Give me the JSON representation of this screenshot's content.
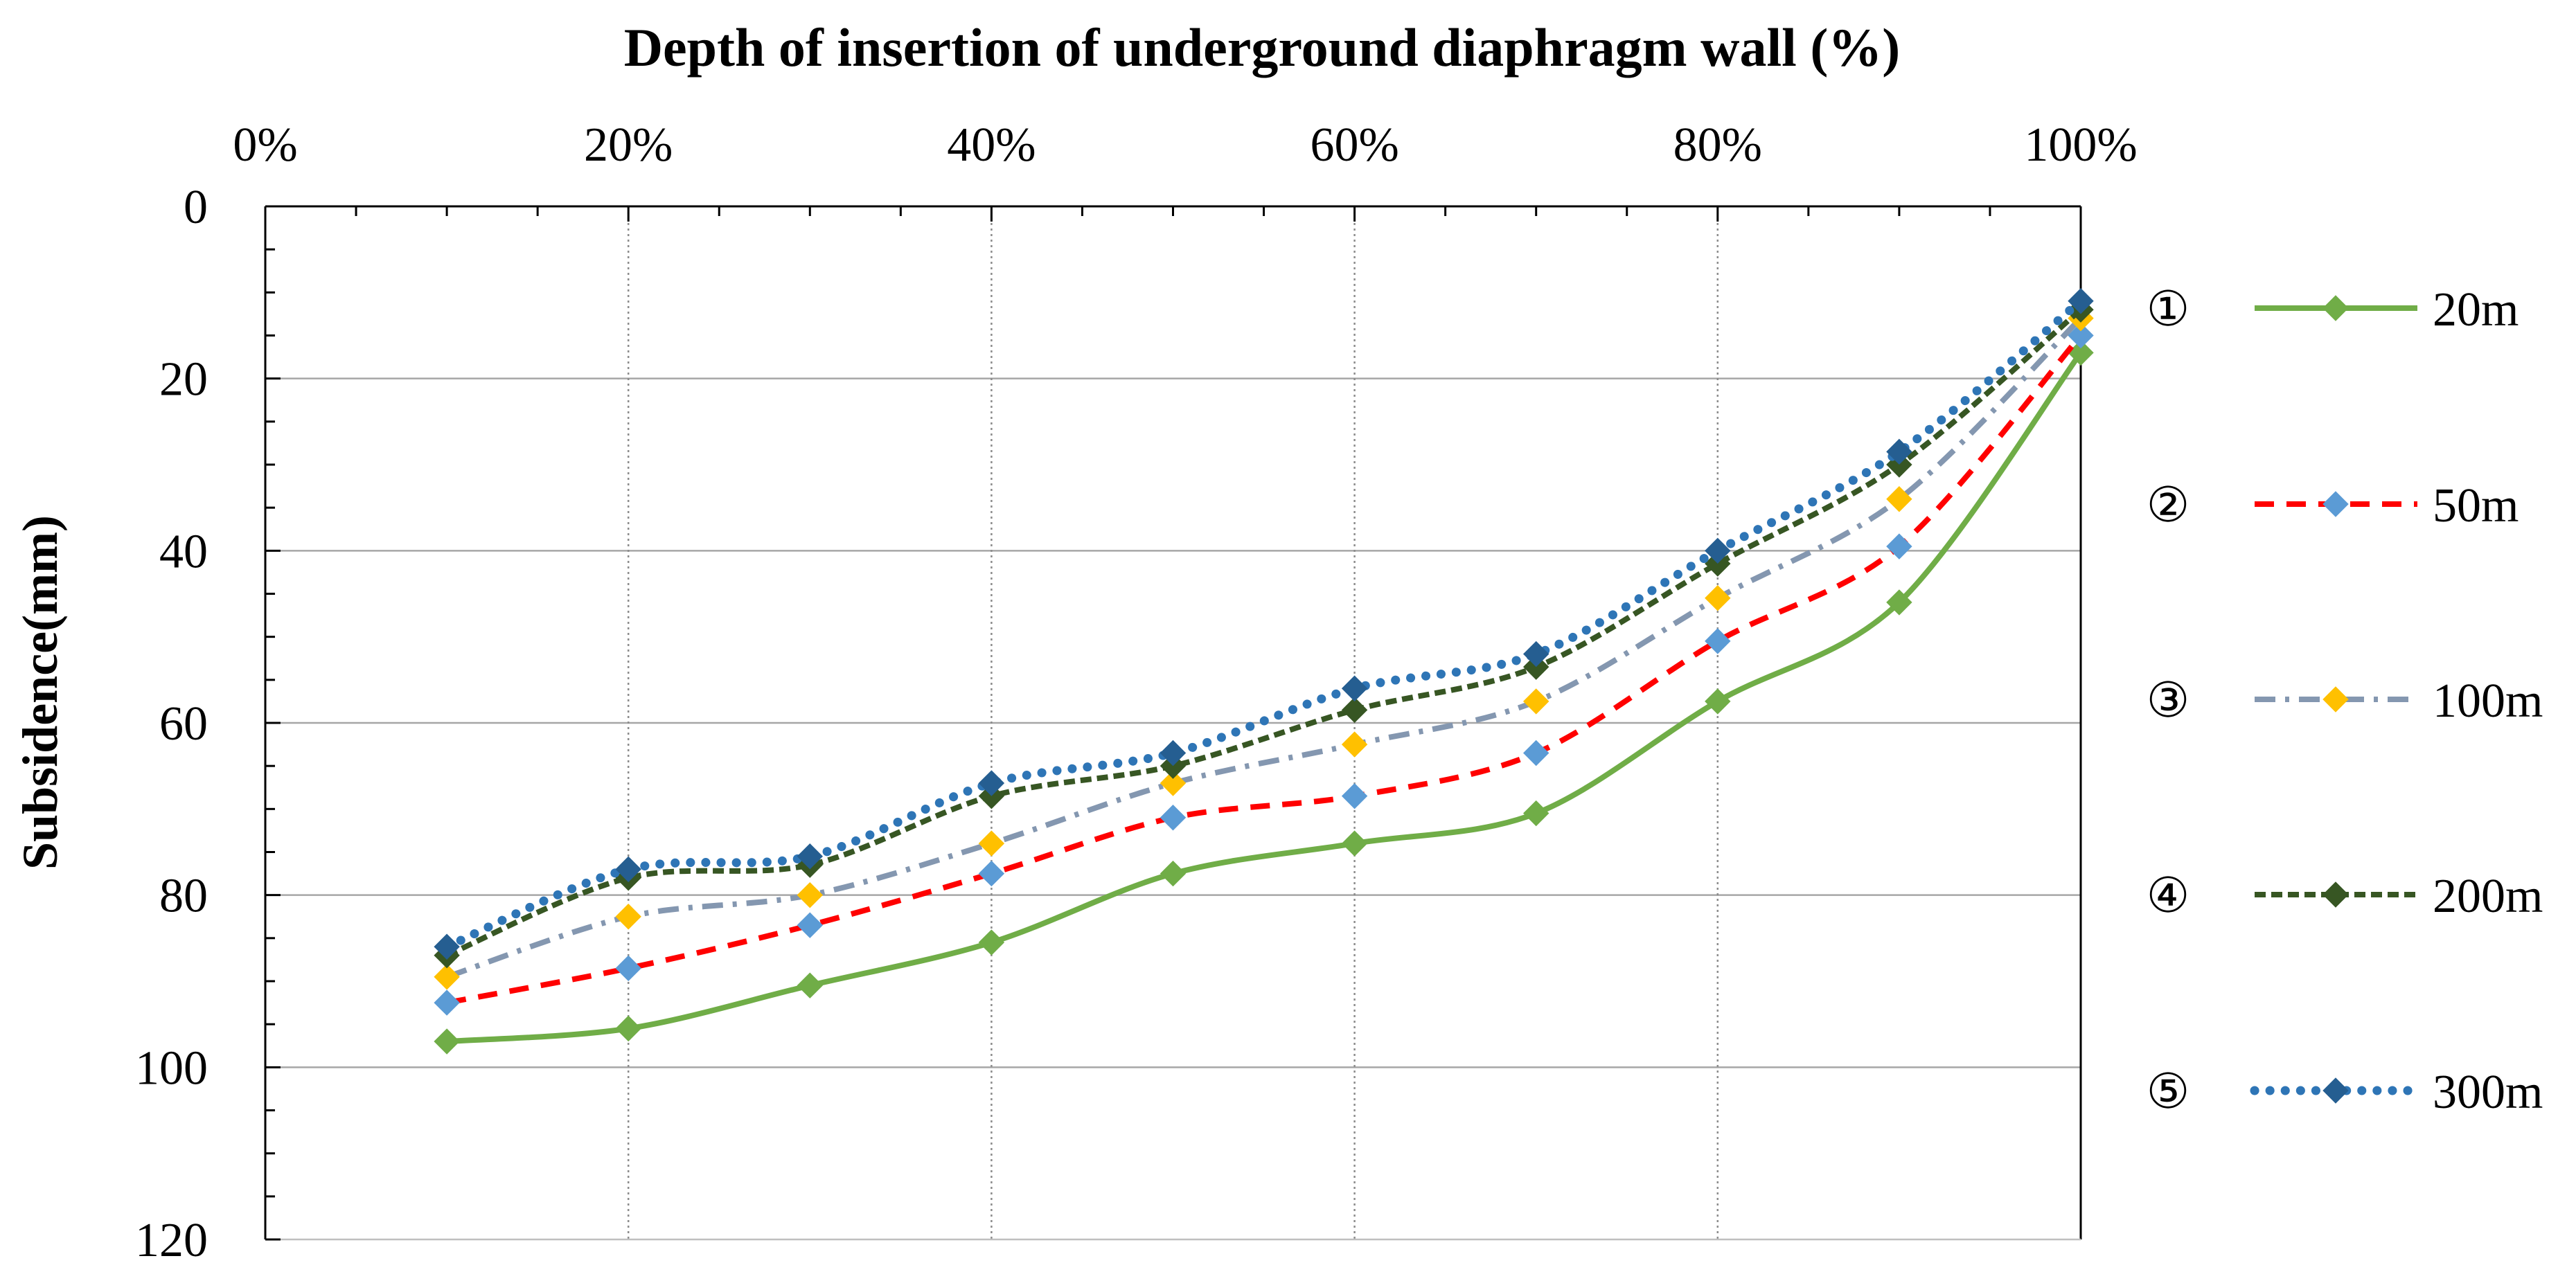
{
  "chart_data": {
    "type": "line",
    "title": "Depth of insertion of underground diaphragm wall (%)",
    "xlabel": "Depth of insertion of underground diaphragm wall (%)",
    "ylabel": "Subsidence(mm)",
    "x_axis_position": "top",
    "y_axis_inverted": true,
    "xlim": [
      0,
      100
    ],
    "ylim": [
      0,
      120
    ],
    "x_ticks": [
      "0%",
      "20%",
      "40%",
      "60%",
      "80%",
      "100%"
    ],
    "y_ticks": [
      "0",
      "20",
      "40",
      "60",
      "80",
      "100",
      "120"
    ],
    "x": [
      10,
      20,
      30,
      40,
      50,
      60,
      70,
      80,
      90,
      100
    ],
    "grid": true,
    "legend_position": "right",
    "series": [
      {
        "marker": "①",
        "name": "20m",
        "color": "#70ad47",
        "marker_color": "#70ad47",
        "dash": "solid",
        "values": [
          97,
          95.5,
          90.5,
          85.5,
          77.5,
          74,
          70.5,
          57.5,
          46,
          17
        ]
      },
      {
        "marker": "②",
        "name": "50m",
        "color": "#ff0000",
        "marker_color": "#5b9bd5",
        "dash": "dash",
        "values": [
          92.5,
          88.5,
          83.5,
          77.5,
          71,
          68.5,
          63.5,
          50.5,
          39.5,
          15
        ]
      },
      {
        "marker": "③",
        "name": "100m",
        "color": "#8497b0",
        "marker_color": "#ffc000",
        "dash": "dashdot",
        "values": [
          89.5,
          82.5,
          80,
          74,
          67,
          62.5,
          57.5,
          45.5,
          34,
          13
        ]
      },
      {
        "marker": "④",
        "name": "200m",
        "color": "#375623",
        "marker_color": "#375623",
        "dash": "shortdash",
        "values": [
          87,
          78,
          76.5,
          68.5,
          65,
          58.5,
          53.5,
          41.5,
          30,
          12
        ]
      },
      {
        "marker": "⑤",
        "name": "300m",
        "color": "#2e75b6",
        "marker_color": "#255e91",
        "dash": "dot",
        "values": [
          86,
          77,
          75.5,
          67,
          63.5,
          56,
          52,
          40,
          28.5,
          11
        ]
      }
    ]
  }
}
